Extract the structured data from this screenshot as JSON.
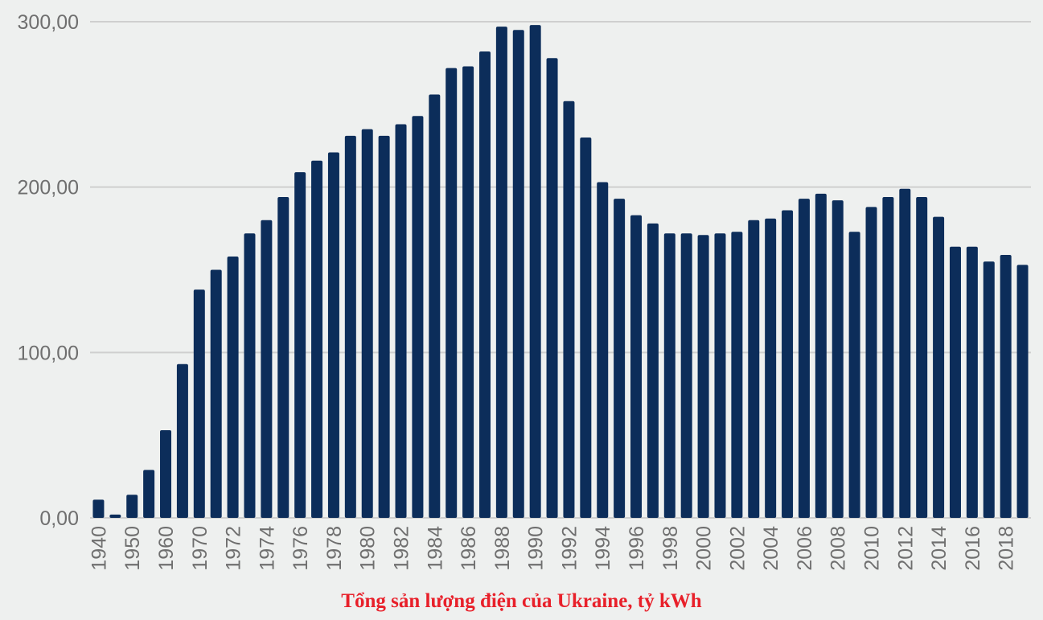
{
  "colors": {
    "bar": "#0c2d5a",
    "grid": "#cfcfcf",
    "tick_text": "#6f6f6f",
    "title": "#e8202a",
    "background": "#eef0ef"
  },
  "chart_data": {
    "type": "bar",
    "title": "Tổng sản lượng điện của Ukraine, tỷ kWh",
    "xlabel": "",
    "ylabel": "",
    "ylim": [
      0,
      300
    ],
    "yticks": [
      0,
      100,
      200,
      300
    ],
    "ytick_labels": [
      "0,00",
      "100,00",
      "200,00",
      "300,00"
    ],
    "grid": true,
    "legend": "none",
    "categories": [
      "1940",
      "1945",
      "1950",
      "1955",
      "1960",
      "1965",
      "1970",
      "1971",
      "1972",
      "1973",
      "1974",
      "1975",
      "1976",
      "1977",
      "1978",
      "1979",
      "1980",
      "1981",
      "1982",
      "1983",
      "1984",
      "1985",
      "1986",
      "1987",
      "1988",
      "1989",
      "1990",
      "1991",
      "1992",
      "1993",
      "1994",
      "1995",
      "1996",
      "1997",
      "1998",
      "1999",
      "2000",
      "2001",
      "2002",
      "2003",
      "2004",
      "2005",
      "2006",
      "2007",
      "2008",
      "2009",
      "2010",
      "2011",
      "2012",
      "2013",
      "2014",
      "2015",
      "2016",
      "2017",
      "2018",
      "2019"
    ],
    "xtick_labels": [
      "1940",
      "",
      "1950",
      "",
      "1960",
      "",
      "1970",
      "",
      "1972",
      "",
      "1974",
      "",
      "1976",
      "",
      "1978",
      "",
      "1980",
      "",
      "1982",
      "",
      "1984",
      "",
      "1986",
      "",
      "1988",
      "",
      "1990",
      "",
      "1992",
      "",
      "1994",
      "",
      "1996",
      "",
      "1998",
      "",
      "2000",
      "",
      "2002",
      "",
      "2004",
      "",
      "2006",
      "",
      "2008",
      "",
      "2010",
      "",
      "2012",
      "",
      "2014",
      "",
      "2016",
      "",
      "2018",
      ""
    ],
    "values": [
      11,
      2,
      14,
      29,
      53,
      93,
      138,
      150,
      158,
      172,
      180,
      194,
      209,
      216,
      221,
      231,
      235,
      231,
      238,
      243,
      256,
      272,
      273,
      282,
      297,
      295,
      298,
      278,
      252,
      230,
      203,
      193,
      183,
      178,
      172,
      172,
      171,
      172,
      173,
      180,
      181,
      186,
      193,
      196,
      192,
      173,
      188,
      194,
      199,
      194,
      182,
      164,
      164,
      155,
      159,
      153
    ]
  }
}
